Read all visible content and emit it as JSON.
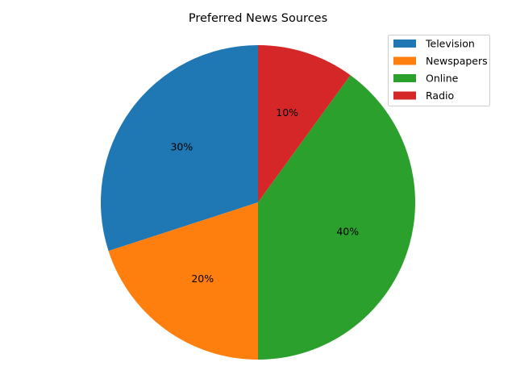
{
  "chart_data": {
    "type": "pie",
    "title": "Preferred News Sources",
    "categories": [
      "Television",
      "Newspapers",
      "Online",
      "Radio"
    ],
    "values": [
      30,
      20,
      40,
      10
    ],
    "value_labels": [
      "30%",
      "20%",
      "40%",
      "10%"
    ],
    "colors": [
      "#1f77b4",
      "#ff7f0e",
      "#2ca02c",
      "#d62728"
    ],
    "start_angle_deg": 90,
    "direction": "counterclockwise",
    "legend_placement": "top-right"
  }
}
